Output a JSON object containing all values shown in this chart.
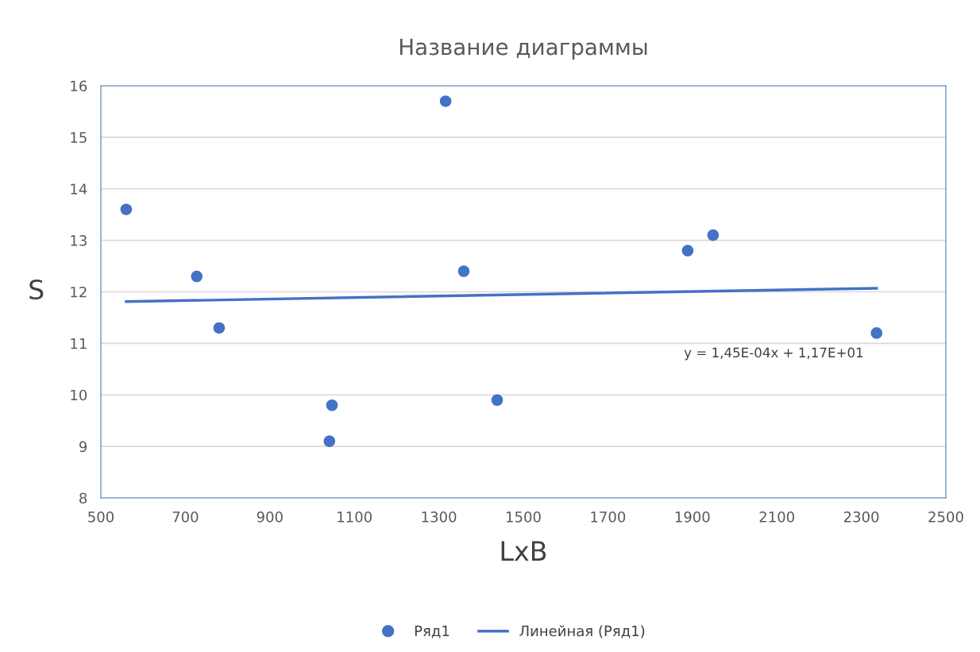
{
  "chart_data": {
    "type": "scatter",
    "title": "Название диаграммы",
    "xlabel": "LxB",
    "ylabel": "S",
    "xlim": [
      500,
      2500
    ],
    "xticks": [
      500,
      700,
      900,
      1100,
      1300,
      1500,
      1700,
      1900,
      2100,
      2300,
      2500
    ],
    "ylim": [
      8,
      16
    ],
    "yticks": [
      8,
      9,
      10,
      11,
      12,
      13,
      14,
      15,
      16
    ],
    "grid": "y",
    "legend": "bottom",
    "series": [
      {
        "name": "Ряд1",
        "color": "#4472c4",
        "marker": "circle",
        "x": [
          560,
          727,
          780,
          1047,
          1041,
          1316,
          1359,
          1438,
          1889,
          1949,
          2336
        ],
        "values": [
          13.6,
          12.3,
          11.3,
          9.8,
          9.1,
          15.7,
          12.4,
          9.9,
          12.8,
          13.1,
          11.2
        ]
      },
      {
        "name": "Линейная (Ряд1)",
        "type": "line",
        "color": "#4472c4",
        "line_style": "solid",
        "x": [
          560,
          2336
        ],
        "values": [
          11.81,
          12.07
        ]
      }
    ],
    "annotations": [
      "y = 1,45E-04x + 1,17E+01"
    ]
  }
}
